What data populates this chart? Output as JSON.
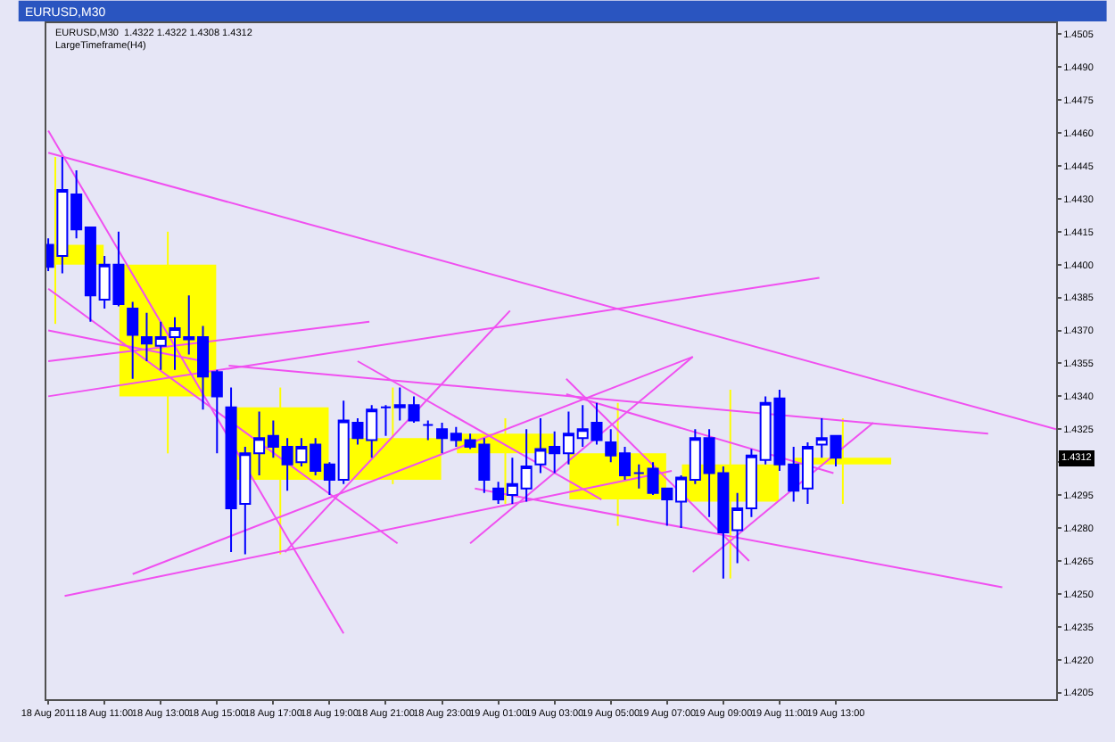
{
  "chart_data": {
    "type": "candlestick",
    "title": "EURUSD,M30",
    "annotations": [
      "EURUSD,M30  1.4322 1.4322 1.4308 1.4312",
      "LargeTimeframe(H4)",
      {
        "text": "1.4312",
        "y": 1.4312
      }
    ],
    "xlim": [
      "2011-08-18T08:56",
      "2011-08-19T20:50"
    ],
    "xticks": [
      {
        "value": "2011-08-18T09:00",
        "label": "18 Aug 2011"
      },
      {
        "value": "2011-08-18T11:00",
        "label": "18 Aug 11:00"
      },
      {
        "value": "2011-08-18T13:00",
        "label": "18 Aug 13:00"
      },
      {
        "value": "2011-08-18T15:00",
        "label": "18 Aug 15:00"
      },
      {
        "value": "2011-08-18T17:00",
        "label": "18 Aug 17:00"
      },
      {
        "value": "2011-08-18T19:00",
        "label": "18 Aug 19:00"
      },
      {
        "value": "2011-08-18T21:00",
        "label": "18 Aug 21:00"
      },
      {
        "value": "2011-08-18T23:00",
        "label": "18 Aug 23:00"
      },
      {
        "value": "2011-08-19T01:00",
        "label": "19 Aug 01:00"
      },
      {
        "value": "2011-08-19T03:00",
        "label": "19 Aug 03:00"
      },
      {
        "value": "2011-08-19T05:00",
        "label": "19 Aug 05:00"
      },
      {
        "value": "2011-08-19T07:00",
        "label": "19 Aug 07:00"
      },
      {
        "value": "2011-08-19T09:00",
        "label": "19 Aug 09:00"
      },
      {
        "value": "2011-08-19T11:00",
        "label": "19 Aug 11:00"
      },
      {
        "value": "2011-08-19T13:00",
        "label": "19 Aug 13:00"
      }
    ],
    "ylim": [
      1.4202,
      1.451
    ],
    "yticks": [
      1.4205,
      {
        "value": 1.422,
        "label": "1.4220"
      },
      1.4235,
      {
        "value": 1.425,
        "label": "1.4250"
      },
      1.4265,
      {
        "value": 1.428,
        "label": "1.4280"
      },
      1.4295,
      {
        "value": 1.431,
        "label": null
      },
      1.4325,
      {
        "value": 1.434,
        "label": "1.4340"
      },
      1.4355,
      {
        "value": 1.437,
        "label": "1.4370"
      },
      1.4385,
      {
        "value": 1.44,
        "label": "1.4400"
      },
      1.4415,
      {
        "value": 1.443,
        "label": "1.4430"
      },
      1.4445,
      {
        "value": 1.446,
        "label": "1.4460"
      },
      1.4475,
      {
        "value": 1.449,
        "label": "1.4490"
      },
      1.4505
    ],
    "grid": false,
    "series": [
      {
        "type": "bar",
        "color": "#ffff00",
        "x": [
          "2011-08-18T09:15",
          "2011-08-18T13:15",
          "2011-08-18T17:15",
          "2011-08-18T21:15",
          "2011-08-19T01:15",
          "2011-08-19T05:15",
          "2011-08-19T09:15",
          "2011-08-19T13:15"
        ],
        "base": [
          1.4409,
          1.44,
          1.4335,
          1.4302,
          1.4323,
          1.4314,
          1.4292,
          1.4309
        ],
        "values": [
          -0.0009,
          -0.006,
          -0.0033,
          0.0019,
          -0.0009,
          -0.0021,
          0.0017,
          0.0003
        ],
        "errors": [
          [
            1.4373,
            1.4449
          ],
          [
            1.4314,
            1.4415
          ],
          [
            1.4268,
            1.4344
          ],
          [
            1.43,
            1.4344
          ],
          [
            1.4291,
            1.433
          ],
          [
            1.4281,
            1.4337
          ],
          [
            1.4257,
            1.4343
          ],
          [
            1.4291,
            1.433
          ]
        ]
      },
      {
        "type": "line",
        "color": "#f050f0",
        "x": [
          "2011-08-18T09:00",
          "2011-08-19T20:50"
        ],
        "values": [
          1.4451,
          1.4325
        ]
      },
      {
        "type": "line",
        "color": "#f050f0",
        "x": [
          "2011-08-18T09:00",
          "2011-08-18T19:30"
        ],
        "values": [
          1.4461,
          1.4232
        ]
      },
      {
        "type": "line",
        "color": "#f050f0",
        "x": [
          "2011-08-18T09:00",
          "2011-08-18T21:25"
        ],
        "values": [
          1.4389,
          1.4273
        ]
      },
      {
        "type": "line",
        "color": "#f050f0",
        "x": [
          "2011-08-18T09:00",
          "2011-08-18T20:25"
        ],
        "values": [
          1.4356,
          1.4374
        ]
      },
      {
        "type": "line",
        "color": "#f050f0",
        "x": [
          "2011-08-18T09:00",
          "2011-08-19T12:25"
        ],
        "values": [
          1.434,
          1.4394
        ]
      },
      {
        "type": "line",
        "color": "#f050f0",
        "x": [
          "2011-08-18T09:00",
          "2011-08-18T14:30"
        ],
        "values": [
          1.437,
          1.4356
        ]
      },
      {
        "type": "line",
        "color": "#f050f0",
        "x": [
          "2011-08-18T15:25",
          "2011-08-19T18:25"
        ],
        "values": [
          1.4354,
          1.4323
        ]
      },
      {
        "type": "line",
        "color": "#f050f0",
        "x": [
          "2011-08-19T03:25",
          "2011-08-19T09:55"
        ],
        "values": [
          1.4348,
          1.4265
        ]
      },
      {
        "type": "line",
        "color": "#f050f0",
        "x": [
          "2011-08-19T03:25",
          "2011-08-19T12:55"
        ],
        "values": [
          1.4341,
          1.4305
        ]
      },
      {
        "type": "line",
        "color": "#f050f0",
        "x": [
          "2011-08-18T17:25",
          "2011-08-19T01:25"
        ],
        "values": [
          1.4269,
          1.4379
        ]
      },
      {
        "type": "line",
        "color": "#f050f0",
        "x": [
          "2011-08-19T00:00",
          "2011-08-19T07:55"
        ],
        "values": [
          1.4273,
          1.4358
        ]
      },
      {
        "type": "line",
        "color": "#f050f0",
        "x": [
          "2011-08-18T12:00",
          "2011-08-19T07:55"
        ],
        "values": [
          1.4259,
          1.4358
        ]
      },
      {
        "type": "line",
        "color": "#f050f0",
        "x": [
          "2011-08-18T09:35",
          "2011-08-19T07:10"
        ],
        "values": [
          1.4249,
          1.4306
        ]
      },
      {
        "type": "line",
        "color": "#f050f0",
        "x": [
          "2011-08-18T20:00",
          "2011-08-19T04:40"
        ],
        "values": [
          1.4356,
          1.4293
        ]
      },
      {
        "type": "line",
        "color": "#f050f0",
        "x": [
          "2011-08-19T00:10",
          "2011-08-19T18:55"
        ],
        "values": [
          1.4298,
          1.4253
        ]
      },
      {
        "type": "line",
        "color": "#f050f0",
        "x": [
          "2011-08-19T07:55",
          "2011-08-19T14:20"
        ],
        "values": [
          1.426,
          1.4328
        ]
      },
      {
        "color": "#0000ff",
        "x": [
          "2011-08-18T09:00",
          "2011-08-18T09:30",
          "2011-08-18T10:00",
          "2011-08-18T10:30",
          "2011-08-18T11:00",
          "2011-08-18T11:30",
          "2011-08-18T12:00",
          "2011-08-18T12:30",
          "2011-08-18T13:00",
          "2011-08-18T13:30",
          "2011-08-18T14:00",
          "2011-08-18T14:30",
          "2011-08-18T15:00",
          "2011-08-18T15:30",
          "2011-08-18T16:00",
          "2011-08-18T16:30",
          "2011-08-18T17:00",
          "2011-08-18T17:30",
          "2011-08-18T18:00",
          "2011-08-18T18:30",
          "2011-08-18T19:00",
          "2011-08-18T19:30",
          "2011-08-18T20:00",
          "2011-08-18T20:30",
          "2011-08-18T21:00",
          "2011-08-18T21:30",
          "2011-08-18T22:00",
          "2011-08-18T22:30",
          "2011-08-18T23:00",
          "2011-08-18T23:30",
          "2011-08-19T00:00",
          "2011-08-19T00:30",
          "2011-08-19T01:00",
          "2011-08-19T01:30",
          "2011-08-19T02:00",
          "2011-08-19T02:30",
          "2011-08-19T03:00",
          "2011-08-19T03:30",
          "2011-08-19T04:00",
          "2011-08-19T04:30",
          "2011-08-19T05:00",
          "2011-08-19T05:30",
          "2011-08-19T06:00",
          "2011-08-19T06:30",
          "2011-08-19T07:00",
          "2011-08-19T07:30",
          "2011-08-19T08:00",
          "2011-08-19T08:30",
          "2011-08-19T09:00",
          "2011-08-19T09:30",
          "2011-08-19T10:00",
          "2011-08-19T10:30",
          "2011-08-19T11:00",
          "2011-08-19T11:30",
          "2011-08-19T12:00",
          "2011-08-19T12:30",
          "2011-08-19T13:00"
        ],
        "ohlc": [
          [
            1.4409,
            1.4412,
            1.4397,
            1.4399
          ],
          [
            1.4404,
            1.4449,
            1.4396,
            1.4434
          ],
          [
            1.4432,
            1.4443,
            1.4412,
            1.4416
          ],
          [
            1.4417,
            1.4417,
            1.4374,
            1.4386
          ],
          [
            1.4384,
            1.4404,
            1.438,
            1.44
          ],
          [
            1.44,
            1.4415,
            1.4381,
            1.4382
          ],
          [
            1.438,
            1.4383,
            1.4348,
            1.4368
          ],
          [
            1.4367,
            1.4378,
            1.4356,
            1.4364
          ],
          [
            1.4363,
            1.4374,
            1.4352,
            1.4367
          ],
          [
            1.4367,
            1.4376,
            1.4352,
            1.4371
          ],
          [
            1.4367,
            1.4386,
            1.4359,
            1.4366
          ],
          [
            1.4367,
            1.4372,
            1.4334,
            1.4349
          ],
          [
            1.4351,
            1.4352,
            1.4314,
            1.434
          ],
          [
            1.4335,
            1.4344,
            1.4269,
            1.4289
          ],
          [
            1.4291,
            1.4317,
            1.4268,
            1.4314
          ],
          [
            1.4314,
            1.4333,
            1.4304,
            1.4321
          ],
          [
            1.4322,
            1.4329,
            1.4312,
            1.4317
          ],
          [
            1.4317,
            1.4321,
            1.4297,
            1.4309
          ],
          [
            1.431,
            1.4321,
            1.4308,
            1.4317
          ],
          [
            1.4318,
            1.4321,
            1.4304,
            1.4306
          ],
          [
            1.4309,
            1.431,
            1.4295,
            1.4302
          ],
          [
            1.4302,
            1.4338,
            1.43,
            1.4329
          ],
          [
            1.4328,
            1.433,
            1.4318,
            1.4321
          ],
          [
            1.432,
            1.4336,
            1.4312,
            1.4334
          ],
          [
            1.4335,
            1.4336,
            1.4322,
            1.4335
          ],
          [
            1.4336,
            1.4344,
            1.4329,
            1.4335
          ],
          [
            1.4336,
            1.434,
            1.4328,
            1.4329
          ],
          [
            1.4327,
            1.4329,
            1.432,
            1.4327
          ],
          [
            1.4325,
            1.4328,
            1.4314,
            1.4321
          ],
          [
            1.4323,
            1.4326,
            1.4317,
            1.432
          ],
          [
            1.432,
            1.4323,
            1.4316,
            1.4317
          ],
          [
            1.4318,
            1.4321,
            1.4296,
            1.4302
          ],
          [
            1.4298,
            1.4301,
            1.4291,
            1.4293
          ],
          [
            1.4295,
            1.4312,
            1.4291,
            1.43
          ],
          [
            1.4298,
            1.4325,
            1.4292,
            1.4308
          ],
          [
            1.4309,
            1.433,
            1.4305,
            1.4316
          ],
          [
            1.4317,
            1.4324,
            1.4305,
            1.4314
          ],
          [
            1.4314,
            1.4333,
            1.4309,
            1.4323
          ],
          [
            1.4321,
            1.4336,
            1.4317,
            1.4325
          ],
          [
            1.4328,
            1.4337,
            1.4318,
            1.432
          ],
          [
            1.4319,
            1.4325,
            1.431,
            1.4313
          ],
          [
            1.4314,
            1.4317,
            1.4302,
            1.4304
          ],
          [
            1.4305,
            1.4309,
            1.4298,
            1.4305
          ],
          [
            1.4307,
            1.431,
            1.4295,
            1.4296
          ],
          [
            1.4298,
            1.4298,
            1.4281,
            1.4293
          ],
          [
            1.4292,
            1.4304,
            1.428,
            1.4303
          ],
          [
            1.4302,
            1.4325,
            1.43,
            1.4321
          ],
          [
            1.4321,
            1.4325,
            1.4285,
            1.4305
          ],
          [
            1.4305,
            1.4308,
            1.4257,
            1.4278
          ],
          [
            1.4279,
            1.4296,
            1.4264,
            1.4289
          ],
          [
            1.4289,
            1.4316,
            1.4285,
            1.4313
          ],
          [
            1.4311,
            1.434,
            1.4309,
            1.4337
          ],
          [
            1.4339,
            1.4343,
            1.4306,
            1.4309
          ],
          [
            1.4309,
            1.4317,
            1.4292,
            1.4297
          ],
          [
            1.4298,
            1.4319,
            1.4291,
            1.4317
          ],
          [
            1.4318,
            1.433,
            1.4312,
            1.4321
          ],
          [
            1.4322,
            1.4322,
            1.4308,
            1.4312
          ]
        ],
        "colors": [
          "#0000ff",
          "#ffffff",
          "#0000ff",
          "#0000ff",
          "#ffffff",
          "#0000ff",
          "#0000ff",
          "#0000ff",
          "#ffffff",
          "#ffffff",
          "#0000ff",
          "#0000ff",
          "#0000ff",
          "#0000ff",
          "#ffffff",
          "#ffffff",
          "#0000ff",
          "#0000ff",
          "#ffffff",
          "#0000ff",
          "#0000ff",
          "#ffffff",
          "#0000ff",
          "#ffffff",
          "#0000ff",
          "#0000ff",
          "#0000ff",
          "#0000ff",
          "#0000ff",
          "#0000ff",
          "#0000ff",
          "#0000ff",
          "#0000ff",
          "#ffffff",
          "#ffffff",
          "#ffffff",
          "#0000ff",
          "#ffffff",
          "#ffffff",
          "#0000ff",
          "#0000ff",
          "#0000ff",
          "#0000ff",
          "#0000ff",
          "#0000ff",
          "#ffffff",
          "#ffffff",
          "#0000ff",
          "#0000ff",
          "#ffffff",
          "#ffffff",
          "#ffffff",
          "#0000ff",
          "#0000ff",
          "#ffffff",
          "#ffffff",
          "#0000ff"
        ]
      }
    ]
  }
}
